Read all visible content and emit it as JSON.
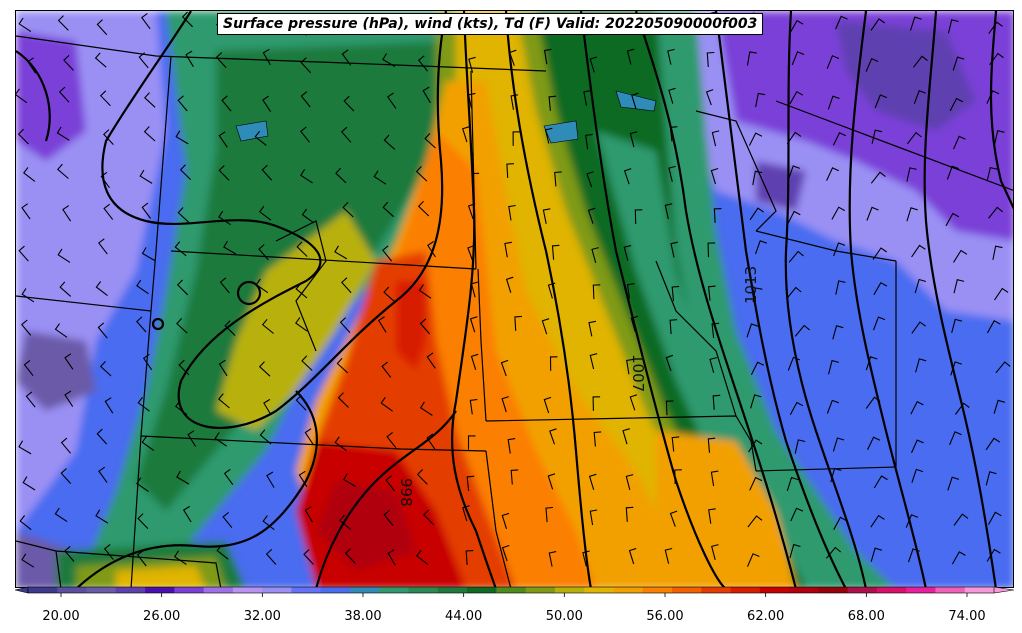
{
  "title": "Surface pressure (hPa), wind (kts), Td (F) Valid: 202205090000f003",
  "isobar_labels": [
    "1013",
    "1007",
    "998"
  ],
  "colorbar": {
    "min": 18,
    "max": 76,
    "tick_labels": [
      "20.00",
      "26.00",
      "32.00",
      "38.00",
      "44.00",
      "50.00",
      "56.00",
      "62.00",
      "68.00",
      "74.00"
    ],
    "colors": [
      "#3d3a8c",
      "#5a4e9e",
      "#6a5aa8",
      "#5f3fb0",
      "#4a0fb0",
      "#7a3fd8",
      "#a06ee8",
      "#b893f2",
      "#9a90f4",
      "#6670f8",
      "#4a6cf0",
      "#2f8bb8",
      "#2f9a6e",
      "#2a8a52",
      "#1f7a3e",
      "#0f6a24",
      "#4f8a1c",
      "#7f9a14",
      "#b8b00a",
      "#e0b400",
      "#f2a000",
      "#fb7f00",
      "#f26000",
      "#e43c00",
      "#d81c00",
      "#c80000",
      "#b00010",
      "#98000c",
      "#b0104a",
      "#d8106c",
      "#e8209c",
      "#f060b8",
      "#f898d8"
    ]
  }
}
